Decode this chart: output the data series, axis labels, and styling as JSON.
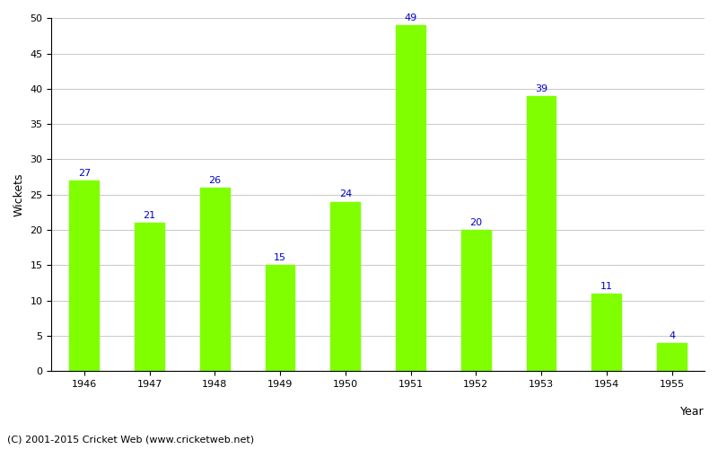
{
  "years": [
    "1946",
    "1947",
    "1948",
    "1949",
    "1950",
    "1951",
    "1952",
    "1953",
    "1954",
    "1955"
  ],
  "values": [
    27,
    21,
    26,
    15,
    24,
    49,
    20,
    39,
    11,
    4
  ],
  "bar_color": "#7FFF00",
  "label_color": "#0000CC",
  "ylabel": "Wickets",
  "xlabel_text": "Year",
  "ylim": [
    0,
    50
  ],
  "yticks": [
    0,
    5,
    10,
    15,
    20,
    25,
    30,
    35,
    40,
    45,
    50
  ],
  "background_color": "#ffffff",
  "grid_color": "#cccccc",
  "footer_text": "(C) 2001-2015 Cricket Web (www.cricketweb.net)",
  "label_fontsize": 8,
  "axis_label_fontsize": 9,
  "tick_fontsize": 8,
  "footer_fontsize": 8,
  "bar_width": 0.45
}
